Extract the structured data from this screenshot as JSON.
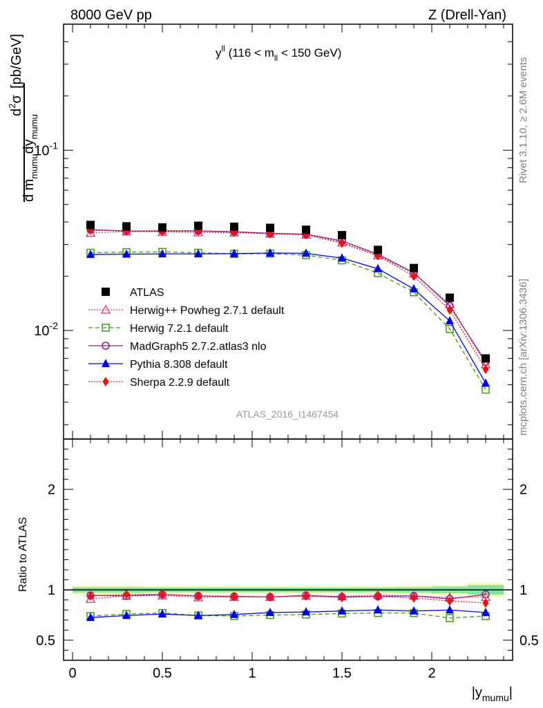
{
  "header": {
    "left": "8000 GeV pp",
    "right": "Z (Drell-Yan)"
  },
  "side_text": {
    "rivet": "Rivet 3.1.10, ≥ 2.6M events",
    "mcplots": "mcplots.cern.ch [arXiv:1306.3436]"
  },
  "chart_data": {
    "type": "scatter",
    "title": "y^ll (116 < m_ll < 150 GeV)",
    "analysis_id": "ATLAS_2016_I1467454",
    "xlabel": "|y_mumu|",
    "ylabel": "d²σ / d m_mumu dy_mumu [pb/GeV]",
    "ratio_ylabel": "Ratio to ATLAS",
    "xlim": [
      -0.05,
      2.45
    ],
    "ylim": [
      0.0025,
      0.5
    ],
    "ylog": true,
    "ratio_ylim": [
      0.3,
      2.5
    ],
    "x_ticks": [
      "0",
      "0.5",
      "1",
      "1.5",
      "2"
    ],
    "y_ticks": [
      "10^-2",
      "10^-1"
    ],
    "ratio_ticks": [
      "0.5",
      "1",
      "2"
    ],
    "legend_position": "middle-left",
    "x": [
      0.1,
      0.3,
      0.5,
      0.7,
      0.9,
      1.1,
      1.3,
      1.5,
      1.7,
      1.9,
      2.1,
      2.3
    ],
    "band_colors": {
      "outer": "#f5f59a",
      "inner": "#7fe3a2"
    },
    "band": {
      "outer_lo": [
        0.96,
        0.96,
        0.965,
        0.965,
        0.965,
        0.965,
        0.965,
        0.965,
        0.965,
        0.96,
        0.955,
        0.935
      ],
      "outer_hi": [
        1.04,
        1.04,
        1.035,
        1.035,
        1.035,
        1.035,
        1.035,
        1.035,
        1.035,
        1.04,
        1.045,
        1.065
      ],
      "inner_lo": [
        0.975,
        0.975,
        0.978,
        0.978,
        0.978,
        0.978,
        0.978,
        0.978,
        0.978,
        0.975,
        0.968,
        0.955
      ],
      "inner_hi": [
        1.025,
        1.025,
        1.022,
        1.022,
        1.022,
        1.022,
        1.022,
        1.022,
        1.022,
        1.025,
        1.032,
        1.045
      ]
    },
    "series": [
      {
        "name": "ATLAS",
        "color": "#000000",
        "marker": "square-filled",
        "line": "none",
        "values": [
          0.0385,
          0.0378,
          0.0373,
          0.0381,
          0.0376,
          0.0371,
          0.0362,
          0.0338,
          0.028,
          0.0222,
          0.0152,
          0.007
        ]
      },
      {
        "name": "Herwig++ Powheg 2.7.1 default",
        "color": "#d6336c",
        "marker": "triangle-open",
        "line": "dotted",
        "values": [
          0.0348,
          0.0354,
          0.0352,
          0.035,
          0.0349,
          0.0344,
          0.034,
          0.0308,
          0.0261,
          0.0207,
          0.014,
          0.0065
        ]
      },
      {
        "name": "Herwig 7.2.1 default",
        "color": "#3a9a1a",
        "marker": "square-open",
        "line": "dashed",
        "values": [
          0.027,
          0.0272,
          0.0273,
          0.027,
          0.0266,
          0.0267,
          0.0262,
          0.0245,
          0.0208,
          0.0163,
          0.0102,
          0.0047
        ]
      },
      {
        "name": "MadGraph5 2.7.2.atlas3 nlo",
        "color": "#8b1a8b",
        "marker": "circle-open",
        "line": "solid",
        "values": [
          0.0363,
          0.0356,
          0.0357,
          0.0357,
          0.0353,
          0.0346,
          0.0342,
          0.0314,
          0.0265,
          0.0209,
          0.0137,
          0.0067
        ]
      },
      {
        "name": "Pythia 8.308 default",
        "color": "#0000ee",
        "marker": "triangle-filled",
        "line": "solid",
        "values": [
          0.0264,
          0.0265,
          0.0266,
          0.0266,
          0.0267,
          0.0269,
          0.0268,
          0.0252,
          0.022,
          0.017,
          0.0113,
          0.0051
        ]
      },
      {
        "name": "Sherpa 2.2.9 default",
        "color": "#ee1111",
        "marker": "diamond-filled",
        "line": "dotted",
        "values": [
          0.036,
          0.0357,
          0.0355,
          0.0356,
          0.0351,
          0.0344,
          0.034,
          0.0305,
          0.026,
          0.02,
          0.013,
          0.0061
        ]
      }
    ],
    "ratios": [
      {
        "name": "Herwig++ Powheg 2.7.1 default",
        "values": [
          0.91,
          0.94,
          0.945,
          0.925,
          0.93,
          0.93,
          0.94,
          0.935,
          0.95,
          0.94,
          0.925,
          0.93
        ]
      },
      {
        "name": "Herwig 7.2.1 default",
        "values": [
          0.74,
          0.76,
          0.77,
          0.745,
          0.74,
          0.75,
          0.755,
          0.765,
          0.77,
          0.77,
          0.72,
          0.74
        ]
      },
      {
        "name": "MadGraph5 2.7.2.atlas3 nlo",
        "values": [
          0.945,
          0.94,
          0.955,
          0.94,
          0.935,
          0.93,
          0.945,
          0.93,
          0.935,
          0.94,
          0.91,
          0.955
        ]
      },
      {
        "name": "Pythia 8.308 default",
        "values": [
          0.725,
          0.745,
          0.76,
          0.745,
          0.755,
          0.775,
          0.78,
          0.79,
          0.8,
          0.79,
          0.8,
          0.775
        ]
      },
      {
        "name": "Sherpa 2.2.9 default",
        "values": [
          0.94,
          0.955,
          0.955,
          0.94,
          0.935,
          0.93,
          0.94,
          0.925,
          0.935,
          0.92,
          0.89,
          0.87
        ]
      }
    ]
  }
}
